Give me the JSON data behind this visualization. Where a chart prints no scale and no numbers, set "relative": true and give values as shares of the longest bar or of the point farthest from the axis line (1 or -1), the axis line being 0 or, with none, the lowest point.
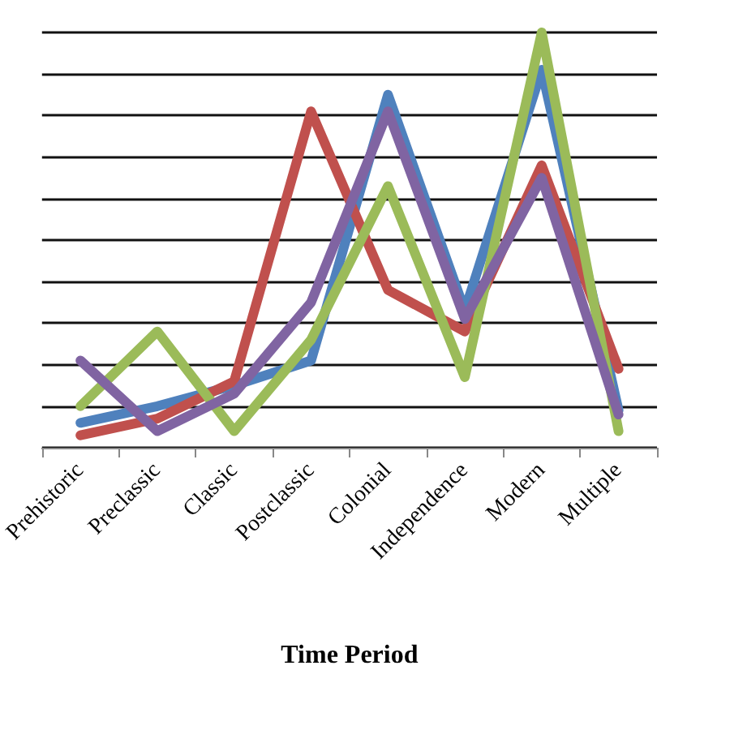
{
  "chart_data": {
    "type": "line",
    "relative": true,
    "xlabel": "Time Period",
    "grid": "y",
    "marker": "none",
    "line_style": "solid",
    "categories": [
      "Prehistoric",
      "Preclassic",
      "Classic",
      "Postclassic",
      "Colonial",
      "Independence",
      "Modern",
      "Multiple"
    ],
    "series": [
      {
        "color": "#4f81bd",
        "values": [
          0.06,
          0.1,
          0.15,
          0.21,
          0.85,
          0.33,
          0.91,
          0.09
        ]
      },
      {
        "color": "#c0504d",
        "values": [
          0.03,
          0.07,
          0.16,
          0.81,
          0.38,
          0.28,
          0.68,
          0.19
        ]
      },
      {
        "color": "#9bbb59",
        "values": [
          0.1,
          0.28,
          0.04,
          0.26,
          0.63,
          0.17,
          1,
          0.04
        ]
      },
      {
        "color": "#8064a2",
        "values": [
          0.21,
          0.04,
          0.13,
          0.35,
          0.81,
          0.31,
          0.65,
          0.08
        ]
      }
    ]
  }
}
